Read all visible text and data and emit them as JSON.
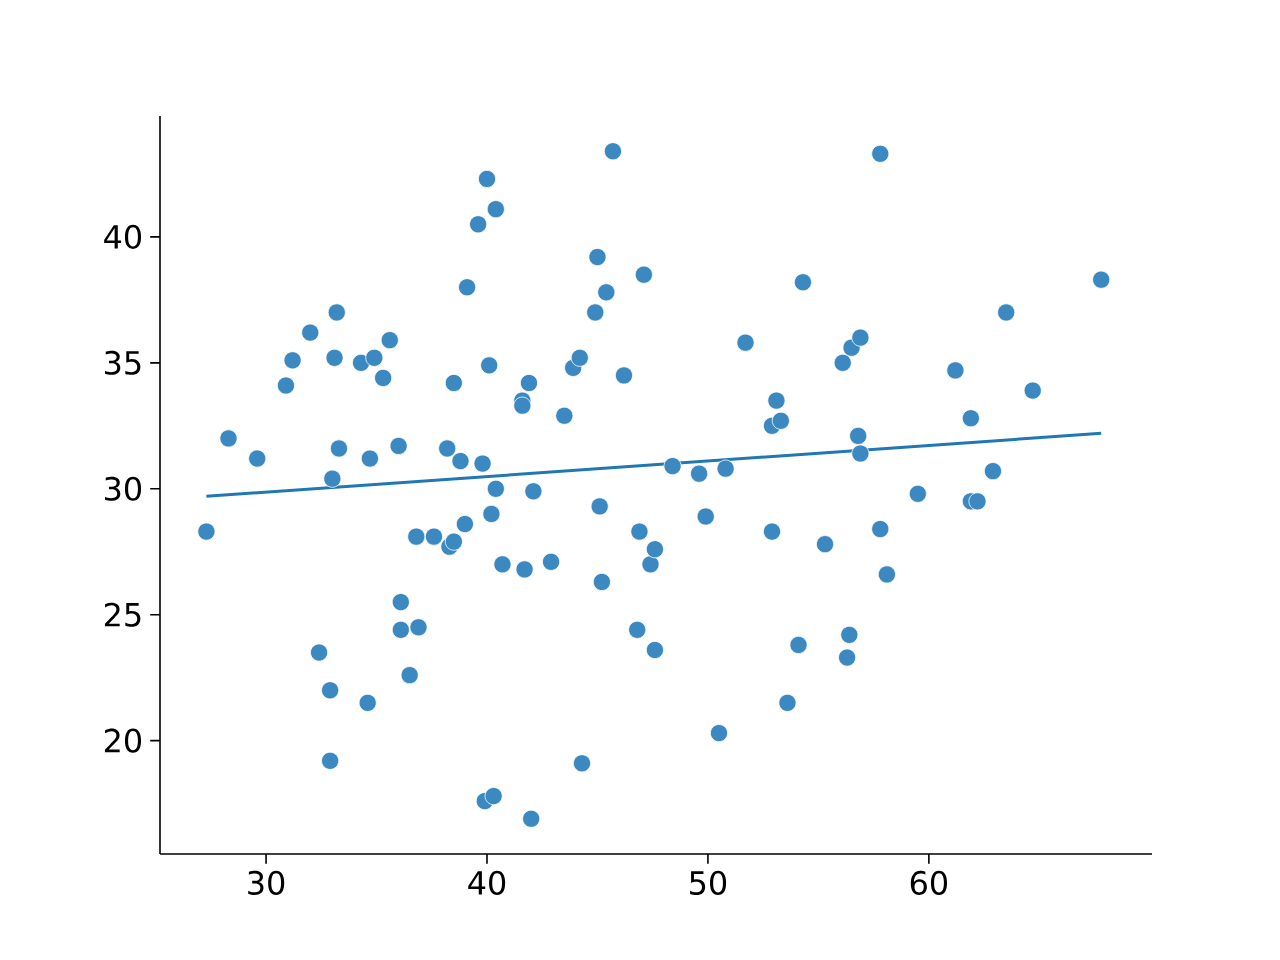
{
  "chart_data": {
    "type": "scatter",
    "xlim": [
      25.2,
      70.1
    ],
    "ylim": [
      15.5,
      44.8
    ],
    "xticks": [
      30,
      40,
      50,
      60
    ],
    "yticks": [
      20,
      25,
      30,
      35,
      40
    ],
    "series": [
      {
        "marker": "circle",
        "color": "#3c88c0",
        "x": [
          27.3,
          28.3,
          29.6,
          30.9,
          31.2,
          32.0,
          32.4,
          32.9,
          32.9,
          33.0,
          33.1,
          33.2,
          33.3,
          34.3,
          34.6,
          34.7,
          34.9,
          35.3,
          35.6,
          36.0,
          36.1,
          36.1,
          36.5,
          36.8,
          36.9,
          37.6,
          38.2,
          38.3,
          38.5,
          38.5,
          38.8,
          39.0,
          39.1,
          39.6,
          39.8,
          39.9,
          40.0,
          40.1,
          40.2,
          40.3,
          40.4,
          40.4,
          40.7,
          41.6,
          41.6,
          41.7,
          41.9,
          42.0,
          42.1,
          42.9,
          43.5,
          43.9,
          44.2,
          44.3,
          44.9,
          45.0,
          45.1,
          45.2,
          45.4,
          45.7,
          46.2,
          46.8,
          46.9,
          47.1,
          47.4,
          47.6,
          47.6,
          48.4,
          49.6,
          49.9,
          50.5,
          50.8,
          51.7,
          52.9,
          52.9,
          53.1,
          53.3,
          53.6,
          54.1,
          54.3,
          55.3,
          56.1,
          56.3,
          56.4,
          56.5,
          56.8,
          56.9,
          56.9,
          57.8,
          57.8,
          58.1,
          59.5,
          61.2,
          61.9,
          61.9,
          62.2,
          62.9,
          63.5,
          64.7,
          67.8
        ],
        "values": [
          28.3,
          32.0,
          31.2,
          34.1,
          35.1,
          36.2,
          23.5,
          22.0,
          19.2,
          30.4,
          35.2,
          37.0,
          31.6,
          35.0,
          21.5,
          31.2,
          35.2,
          34.4,
          35.9,
          31.7,
          25.5,
          24.4,
          22.6,
          28.1,
          24.5,
          28.1,
          31.6,
          27.7,
          27.9,
          34.2,
          31.1,
          28.6,
          38.0,
          40.5,
          31.0,
          17.6,
          42.3,
          34.9,
          29.0,
          17.8,
          30.0,
          41.1,
          27.0,
          33.5,
          33.3,
          26.8,
          34.2,
          16.9,
          29.9,
          27.1,
          32.9,
          34.8,
          35.2,
          19.1,
          37.0,
          39.2,
          29.3,
          26.3,
          37.8,
          43.4,
          34.5,
          24.4,
          28.3,
          38.5,
          27.0,
          27.6,
          23.6,
          30.9,
          30.6,
          28.9,
          20.3,
          30.8,
          35.8,
          28.3,
          32.5,
          33.5,
          32.7,
          21.5,
          23.8,
          38.2,
          27.8,
          35.0,
          23.3,
          24.2,
          35.6,
          32.1,
          36.0,
          31.4,
          43.3,
          28.4,
          26.6,
          29.8,
          34.7,
          32.8,
          29.5,
          29.5,
          30.7,
          37.0,
          33.9,
          38.3
        ]
      },
      {
        "type": "line",
        "marker": "none",
        "color": "#1f77b4",
        "x": [
          27.3,
          67.8
        ],
        "values": [
          29.7,
          32.2
        ]
      }
    ]
  }
}
